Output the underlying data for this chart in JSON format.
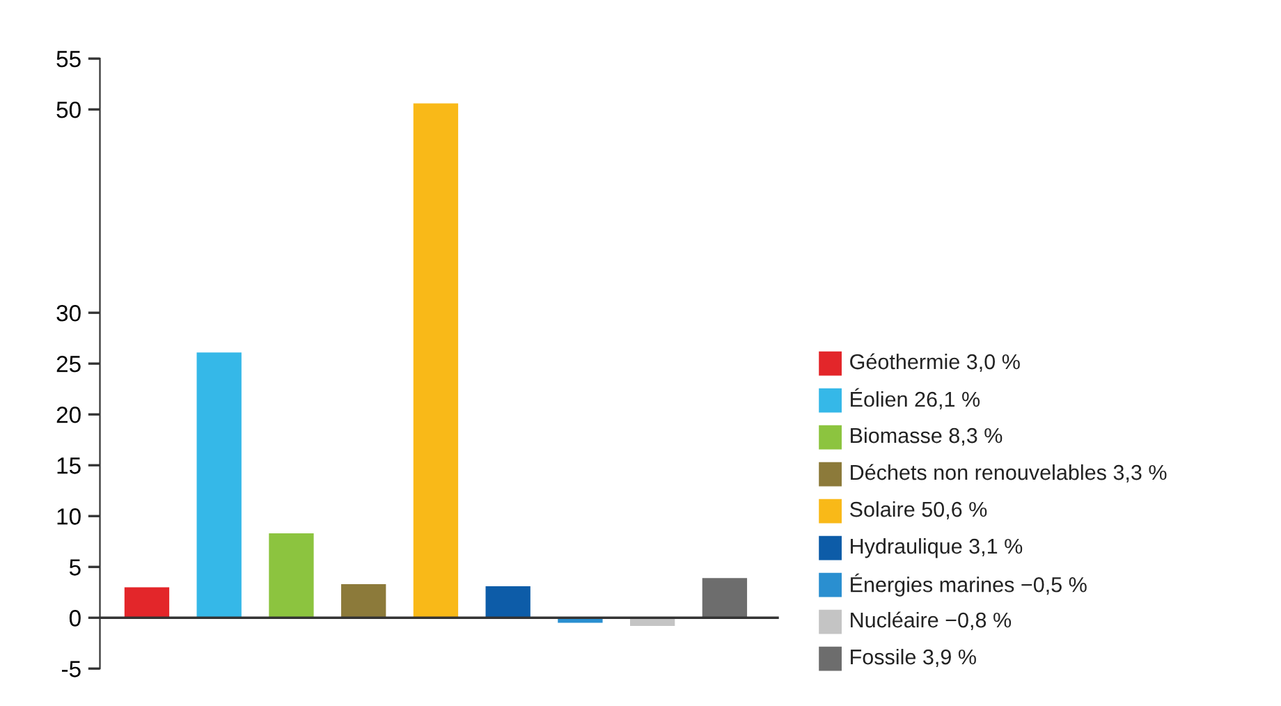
{
  "chart_data": {
    "type": "bar",
    "categories": [
      null,
      null,
      null,
      null,
      null,
      null,
      null,
      null,
      null
    ],
    "ylim": [
      -5,
      55
    ],
    "yticks": [
      -5,
      0,
      5,
      10,
      15,
      20,
      25,
      30,
      50,
      55
    ],
    "grid": false,
    "legend": "right",
    "ref_lines": [
      {
        "axis": "y",
        "value": 0,
        "color": "#333333"
      }
    ],
    "series": [
      {
        "name": "Géothermie 3,0 %",
        "color": "#e3262a",
        "values": [
          3.0,
          null,
          null,
          null,
          null,
          null,
          null,
          null,
          null
        ]
      },
      {
        "name": "Éolien 26,1 %",
        "color": "#35b8e8",
        "values": [
          null,
          26.1,
          null,
          null,
          null,
          null,
          null,
          null,
          null
        ]
      },
      {
        "name": "Biomasse 8,3 %",
        "color": "#8cc43f",
        "values": [
          null,
          null,
          8.3,
          null,
          null,
          null,
          null,
          null,
          null
        ]
      },
      {
        "name": "Déchets non renouvelables 3,3 %",
        "color": "#8c7a3a",
        "values": [
          null,
          null,
          null,
          3.3,
          null,
          null,
          null,
          null,
          null
        ]
      },
      {
        "name": "Solaire 50,6 %",
        "color": "#f9b918",
        "values": [
          null,
          null,
          null,
          null,
          50.6,
          null,
          null,
          null,
          null
        ]
      },
      {
        "name": "Hydraulique 3,1 %",
        "color": "#0d5ca8",
        "values": [
          null,
          null,
          null,
          null,
          null,
          3.1,
          null,
          null,
          null
        ]
      },
      {
        "name": "Énergies marines −0,5 %",
        "color": "#2a8fd0",
        "values": [
          null,
          null,
          null,
          null,
          null,
          null,
          -0.5,
          null,
          null
        ]
      },
      {
        "name": "Nucléaire −0,8 %",
        "color": "#c4c4c4",
        "values": [
          null,
          null,
          null,
          null,
          null,
          null,
          null,
          -0.8,
          null
        ]
      },
      {
        "name": "Fossile 3,9 %",
        "color": "#6d6d6d",
        "values": [
          null,
          null,
          null,
          null,
          null,
          null,
          null,
          null,
          3.9
        ]
      }
    ]
  }
}
